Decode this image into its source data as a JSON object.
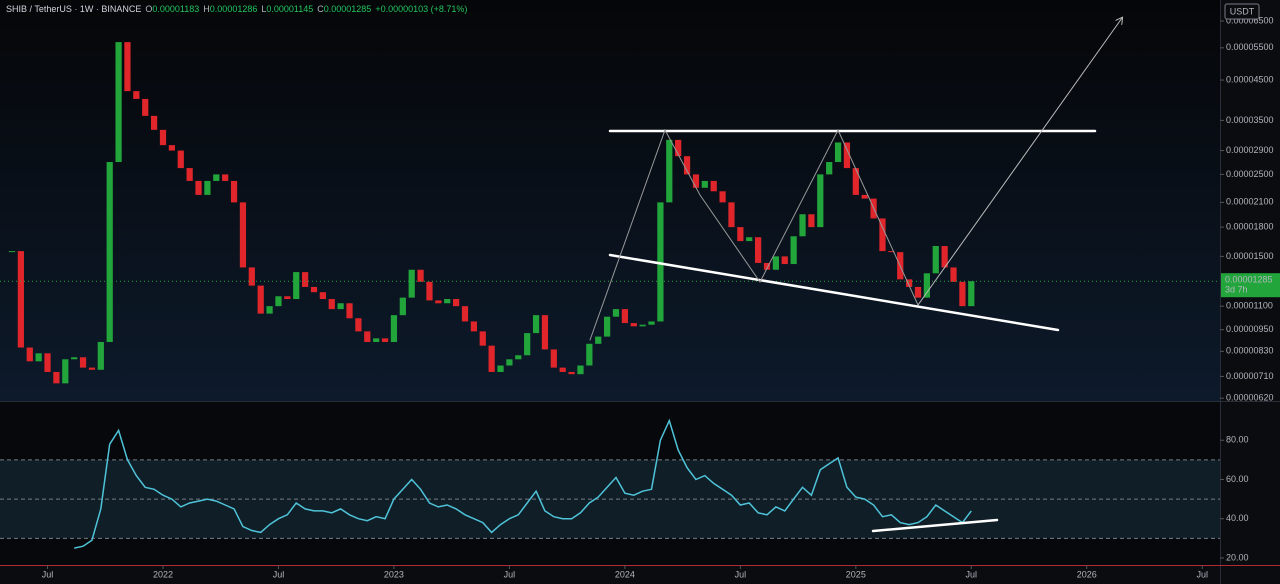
{
  "header": {
    "symbol": "SHIB / TetherUS",
    "interval": "1W",
    "exchange": "BINANCE",
    "ohlc": [
      {
        "key": "O",
        "value": "0.00001183"
      },
      {
        "key": "H",
        "value": "0.00001286"
      },
      {
        "key": "L",
        "value": "0.00001145"
      },
      {
        "key": "C",
        "value": "0.00001285"
      }
    ],
    "change": "+0.00000103 (+8.71%)"
  },
  "currency": "USDT",
  "chart_data": [
    {
      "type": "candlestick",
      "colors": {
        "up": "#22a63c",
        "down": "#e0262b"
      },
      "log": true,
      "x": [
        0,
        2,
        4,
        6,
        8,
        10,
        12,
        14,
        16,
        18,
        20,
        22,
        24,
        26,
        28,
        30,
        32,
        34,
        36,
        38,
        40,
        42,
        44,
        46,
        48,
        50,
        52,
        54,
        56,
        58,
        60,
        62,
        64,
        66,
        68,
        70,
        72,
        74,
        76,
        78,
        80,
        82,
        84,
        86,
        88,
        90,
        92,
        94,
        96,
        98,
        100,
        102,
        104,
        106,
        108,
        110,
        112,
        114,
        116,
        118,
        120,
        122,
        124,
        126,
        128,
        130,
        132,
        134,
        136,
        138,
        140,
        142,
        144,
        146,
        148,
        150,
        152,
        154,
        156,
        158,
        160,
        162,
        164,
        166,
        168,
        170,
        172,
        174,
        176,
        178,
        180,
        182,
        184,
        186,
        188,
        190,
        192,
        194,
        196,
        198,
        200,
        202,
        204,
        206,
        208,
        210,
        212,
        214,
        216
      ],
      "values": [
        1.55e-05,
        8.5e-06,
        7.8e-06,
        8.2e-06,
        7.3e-06,
        6.8e-06,
        7.9e-06,
        8e-06,
        7.5e-06,
        7.4e-06,
        8.8e-06,
        2.7e-05,
        5.7e-05,
        4.2e-05,
        4e-05,
        3.6e-05,
        3.3e-05,
        3e-05,
        2.9e-05,
        2.6e-05,
        2.4e-05,
        2.2e-05,
        2.4e-05,
        2.5e-05,
        2.4e-05,
        2.1e-05,
        1.4e-05,
        1.25e-05,
        1.05e-05,
        1.1e-05,
        1.17e-05,
        1.15e-05,
        1.36e-05,
        1.24e-05,
        1.2e-05,
        1.15e-05,
        1.08e-05,
        1.12e-05,
        1.02e-05,
        9.4e-06,
        8.8e-06,
        9e-06,
        8.8e-06,
        1.04e-05,
        1.16e-05,
        1.38e-05,
        1.28e-05,
        1.14e-05,
        1.12e-05,
        1.15e-05,
        1.1e-05,
        1e-05,
        9.4e-06,
        8.6e-06,
        7.3e-06,
        7.6e-06,
        7.9e-06,
        8.1e-06,
        9.3e-06,
        1.04e-05,
        8.4e-06,
        7.5e-06,
        7.3e-06,
        7.2e-06,
        7.6e-06,
        8.7e-06,
        9.1e-06,
        1.03e-05,
        1.08e-05,
        9.9e-06,
        9.7e-06,
        9.8e-06,
        1e-05,
        2.1e-05,
        3.1e-05,
        2.8e-05,
        2.5e-05,
        2.3e-05,
        2.4e-05,
        2.25e-05,
        2.1e-05,
        1.8e-05,
        1.65e-05,
        1.69e-05,
        1.44e-05,
        1.38e-05,
        1.5e-05,
        1.43e-05,
        1.7e-05,
        1.95e-05,
        1.8e-05,
        2.5e-05,
        2.7e-05,
        3.05e-05,
        2.6e-05,
        2.2e-05,
        2.15e-05,
        1.9e-05,
        1.55e-05,
        1.54e-05,
        1.3e-05,
        1.24e-05,
        1.16e-05,
        1.35e-05,
        1.6e-05,
        1.4e-05,
        1.28e-05,
        1.1e-05,
        1.285e-05
      ],
      "xlim": [
        -2.7,
        272
      ],
      "ylim": [
        6.13e-06,
        7.41e-05
      ],
      "yticks": [
        {
          "value": 6.2e-06,
          "label": "0.00000620"
        },
        {
          "value": 7.1e-06,
          "label": "0.00000710"
        },
        {
          "value": 8.3e-06,
          "label": "0.00000830"
        },
        {
          "value": 9.5e-06,
          "label": "0.00000950"
        },
        {
          "value": 1.1e-05,
          "label": "0.00001100"
        },
        {
          "value": 1.5e-05,
          "label": "0.00001500"
        },
        {
          "value": 1.8e-05,
          "label": "0.00001800"
        },
        {
          "value": 2.1e-05,
          "label": "0.00002100"
        },
        {
          "value": 2.5e-05,
          "label": "0.00002500"
        },
        {
          "value": 2.9e-05,
          "label": "0.00002900"
        },
        {
          "value": 3.5e-05,
          "label": "0.00003500"
        },
        {
          "value": 4.5e-05,
          "label": "0.00004500"
        },
        {
          "value": 5.5e-05,
          "label": "0.00005500"
        },
        {
          "value": 6.5e-05,
          "label": "0.00006500"
        }
      ],
      "xticks": [
        {
          "value": 8,
          "label": "Jul"
        },
        {
          "value": 34,
          "label": "2022"
        },
        {
          "value": 60,
          "label": "Jul"
        },
        {
          "value": 86,
          "label": "2023"
        },
        {
          "value": 112,
          "label": "Jul"
        },
        {
          "value": 138,
          "label": "2024"
        },
        {
          "value": 164,
          "label": "Jul"
        },
        {
          "value": 190,
          "label": "2025"
        },
        {
          "value": 216,
          "label": "Jul"
        },
        {
          "value": 242,
          "label": "2026"
        },
        {
          "value": 268,
          "label": "Jul"
        }
      ],
      "last_price": 1.285e-05,
      "countdown": "3d 7h"
    },
    {
      "type": "line",
      "color": "#4fc3d9",
      "x": [
        0,
        2,
        4,
        6,
        8,
        10,
        12,
        14,
        16,
        18,
        20,
        22,
        24,
        26,
        28,
        30,
        32,
        34,
        36,
        38,
        40,
        42,
        44,
        46,
        48,
        50,
        52,
        54,
        56,
        58,
        60,
        62,
        64,
        66,
        68,
        70,
        72,
        74,
        76,
        78,
        80,
        82,
        84,
        86,
        88,
        90,
        92,
        94,
        96,
        98,
        100,
        102,
        104,
        106,
        108,
        110,
        112,
        114,
        116,
        118,
        120,
        122,
        124,
        126,
        128,
        130,
        132,
        134,
        136,
        138,
        140,
        142,
        144,
        146,
        148,
        150,
        152,
        154,
        156,
        158,
        160,
        162,
        164,
        166,
        168,
        170,
        172,
        174,
        176,
        178,
        180,
        182,
        184,
        186,
        188,
        190,
        192,
        194,
        196,
        198,
        200,
        202,
        204,
        206,
        208,
        210,
        212,
        214,
        216
      ],
      "values": [
        null,
        null,
        null,
        null,
        null,
        null,
        null,
        25,
        26,
        29,
        45,
        78,
        85,
        70,
        62,
        56,
        55,
        52,
        50,
        46,
        48,
        49,
        50,
        49,
        47,
        45,
        36,
        34,
        33,
        37,
        40,
        42,
        48,
        45,
        44,
        44,
        43,
        45,
        42,
        40,
        39,
        41,
        40,
        50,
        55,
        60,
        55,
        48,
        46,
        47,
        45,
        42,
        40,
        38,
        33,
        37,
        40,
        42,
        48,
        54,
        44,
        41,
        40,
        40,
        43,
        48,
        51,
        56,
        61,
        53,
        52,
        54,
        55,
        80,
        90,
        75,
        66,
        60,
        62,
        58,
        55,
        52,
        47,
        48,
        43,
        42,
        46,
        44,
        50,
        56,
        52,
        65,
        68,
        71,
        56,
        51,
        50,
        47,
        41,
        42,
        38,
        37,
        38,
        41,
        47,
        44,
        41,
        38,
        44
      ],
      "ylim": [
        16.4,
        99.5
      ],
      "levels": [
        70,
        50,
        30
      ],
      "yticks": [
        {
          "value": 20,
          "label": "20.00"
        },
        {
          "value": 40,
          "label": "40.00"
        },
        {
          "value": 60,
          "label": "60.00"
        },
        {
          "value": 80,
          "label": "80.00"
        }
      ]
    }
  ]
}
